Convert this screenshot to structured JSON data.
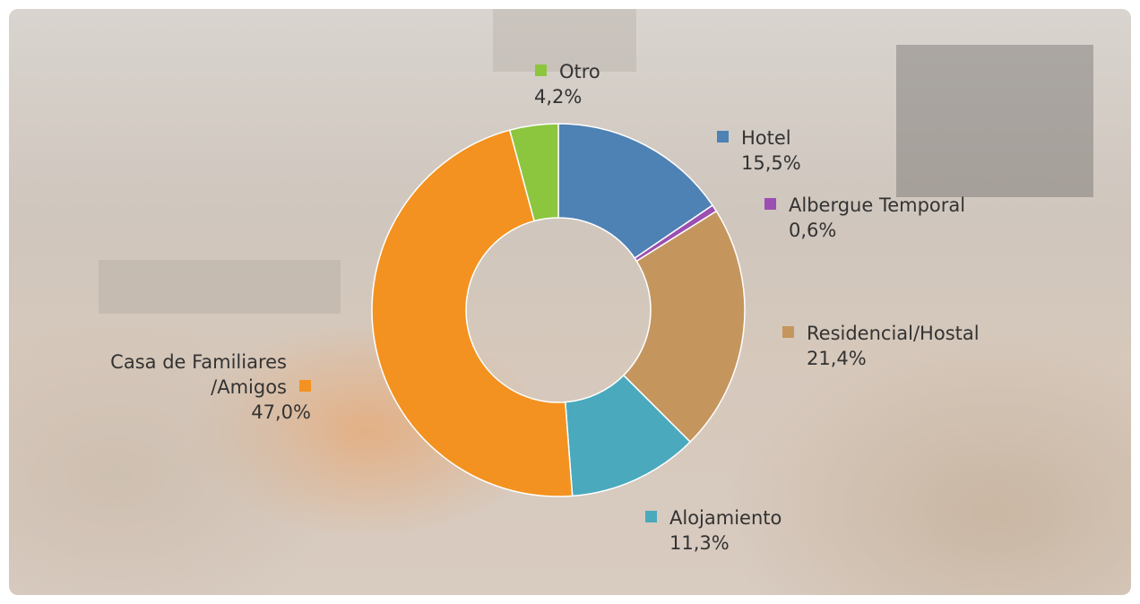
{
  "chart_data": {
    "type": "donut",
    "categories": [
      "Hotel",
      "Albergue Temporal",
      "Residencial/Hostal",
      "Alojamiento",
      "Casa de Familiares /Amigos",
      "Otro"
    ],
    "values": [
      15.5,
      0.6,
      21.4,
      11.3,
      47.0,
      4.2
    ],
    "value_labels": [
      "15,5%",
      "0,6%",
      "21,4%",
      "11,3%",
      "47,0%",
      "4,2%"
    ],
    "colors": [
      "#4e81b4",
      "#9b4fb0",
      "#c4965e",
      "#4aa9bd",
      "#f39220",
      "#8cc63f"
    ]
  }
}
